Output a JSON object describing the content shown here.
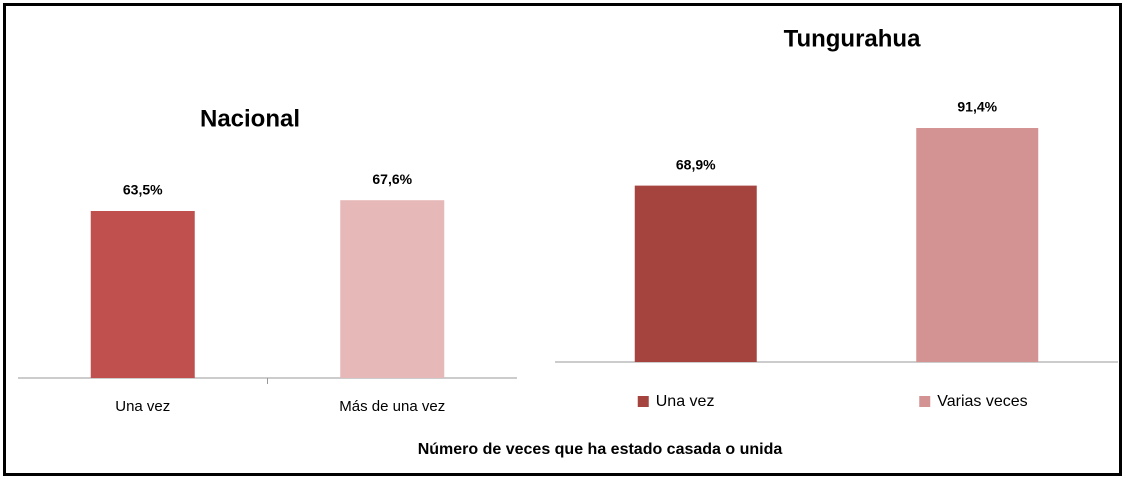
{
  "chart_data": [
    {
      "type": "bar",
      "title": "Nacional",
      "categories": [
        "Una vez",
        "Más de una vez"
      ],
      "values": [
        63.5,
        67.6
      ],
      "value_labels": [
        "63,5%",
        "67,6%"
      ],
      "colors": [
        "#c0504d",
        "#e6b8b7"
      ]
    },
    {
      "type": "bar",
      "title": "Tungurahua",
      "categories": [
        "Una vez",
        "Varias veces"
      ],
      "values": [
        68.9,
        91.4
      ],
      "value_labels": [
        "68,9%",
        "91,4%"
      ],
      "colors": [
        "#a5443f",
        "#d49393"
      ],
      "legend": "bottom"
    }
  ],
  "caption": "Número de veces que ha estado casada o unida"
}
